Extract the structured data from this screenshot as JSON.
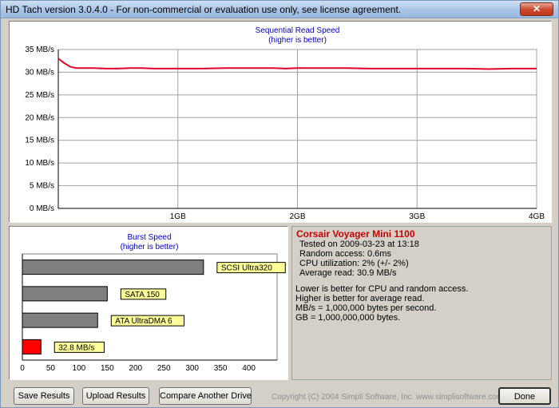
{
  "window": {
    "title": "HD Tach version 3.0.4.0  -  For non-commercial or evaluation use only, see license agreement.",
    "close_glyph": "✕"
  },
  "chart_data": [
    {
      "type": "line",
      "title": "Sequential Read Speed",
      "subtitle": "(higher is better)",
      "y_ticks": [
        "0 MB/s",
        "5 MB/s",
        "10 MB/s",
        "15 MB/s",
        "20 MB/s",
        "25 MB/s",
        "30 MB/s",
        "35 MB/s"
      ],
      "y_tick_values": [
        0,
        5,
        10,
        15,
        20,
        25,
        30,
        35
      ],
      "x_ticks": [
        "1GB",
        "2GB",
        "3GB",
        "4GB"
      ],
      "x_tick_values": [
        1,
        2,
        3,
        4
      ],
      "xlim": [
        0,
        4
      ],
      "ylim": [
        0,
        35
      ],
      "series": [
        {
          "color": "#e0002a",
          "x": [
            0,
            0.05,
            0.1,
            0.15,
            0.2,
            0.3,
            0.4,
            0.5,
            0.6,
            0.7,
            0.8,
            0.9,
            1.0,
            1.2,
            1.4,
            1.6,
            1.8,
            1.9,
            2.0,
            2.2,
            2.4,
            2.6,
            2.8,
            3.0,
            3.2,
            3.4,
            3.6,
            3.8,
            4.0
          ],
          "y": [
            33,
            32,
            31.2,
            30.9,
            30.9,
            30.9,
            30.8,
            30.8,
            30.9,
            30.9,
            30.8,
            30.8,
            30.8,
            30.8,
            30.9,
            30.9,
            30.9,
            30.8,
            30.9,
            30.9,
            30.9,
            30.8,
            30.8,
            30.8,
            30.8,
            30.8,
            30.7,
            30.8,
            30.8
          ]
        }
      ]
    },
    {
      "type": "bar",
      "orientation": "horizontal",
      "title": "Burst Speed",
      "subtitle": "(higher is better)",
      "categories": [
        "SCSI Ultra320",
        "SATA 150",
        "ATA UltraDMA 6",
        "32.8 MB/s"
      ],
      "values": [
        320,
        150,
        133,
        32.8
      ],
      "colors": [
        "#808080",
        "#808080",
        "#808080",
        "#ff0000"
      ],
      "x_ticks": [
        "0",
        "50",
        "100",
        "150",
        "200",
        "250",
        "300",
        "350",
        "400"
      ],
      "xlim": [
        0,
        450
      ]
    }
  ],
  "info": {
    "drive_name": "Corsair Voyager Mini 1100",
    "lines": [
      "Tested on 2009-03-23 at 13:18",
      "Random access: 0.6ms",
      "CPU utilization: 2% (+/- 2%)",
      "Average read: 30.9 MB/s"
    ],
    "notes": [
      "Lower is better for CPU and random access.",
      "Higher is better for average read.",
      "MB/s = 1,000,000 bytes per second.",
      "GB = 1,000,000,000 bytes."
    ]
  },
  "buttons": {
    "save": "Save Results",
    "upload": "Upload Results",
    "compare": "Compare Another Drive",
    "done": "Done"
  },
  "copyright": "Copyright (C) 2004 Simpli Software, Inc. www.simplisoftware.com"
}
